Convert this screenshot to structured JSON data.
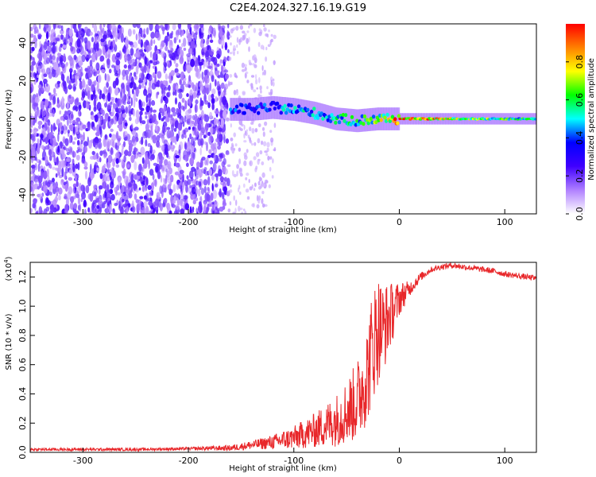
{
  "title": "C2E4.2024.327.16.19.G19",
  "chart_data": [
    {
      "type": "heatmap",
      "xlabel": "Height of straight line (km)",
      "ylabel": "Frequency (Hz)",
      "xlim": [
        -350,
        130
      ],
      "ylim": [
        -50,
        50
      ],
      "x_ticks": [
        -300,
        -200,
        -100,
        0,
        100
      ],
      "y_ticks": [
        -40,
        -20,
        0,
        20,
        40
      ],
      "colorbar": {
        "label": "Normalized spectral amplitude",
        "range": [
          0,
          1
        ],
        "ticks": [
          0.0,
          0.2,
          0.4,
          0.6,
          0.8
        ],
        "colormap": [
          "#ffffff",
          "#b080ff",
          "#4000ff",
          "#0000ff",
          "#00ffff",
          "#00ff00",
          "#ffff00",
          "#ff8000",
          "#ff0000"
        ]
      },
      "noise_region_x": [
        -350,
        -162
      ],
      "sparse_noise_region_x": [
        -162,
        -118
      ],
      "signal_track": [
        {
          "x": -160,
          "f": 5,
          "amp": 0.35
        },
        {
          "x": -140,
          "f": 5,
          "amp": 0.35
        },
        {
          "x": -120,
          "f": 6,
          "amp": 0.4
        },
        {
          "x": -100,
          "f": 5,
          "amp": 0.45
        },
        {
          "x": -80,
          "f": 3,
          "amp": 0.45
        },
        {
          "x": -60,
          "f": 0,
          "amp": 0.5
        },
        {
          "x": -40,
          "f": -1,
          "amp": 0.5
        },
        {
          "x": -20,
          "f": 0,
          "amp": 0.6
        },
        {
          "x": 0,
          "f": 0,
          "amp": 0.9
        },
        {
          "x": 50,
          "f": 0,
          "amp": 0.7
        },
        {
          "x": 100,
          "f": 0,
          "amp": 0.55
        },
        {
          "x": 130,
          "f": 0,
          "amp": 0.5
        }
      ]
    },
    {
      "type": "line",
      "xlabel": "Height of straight line (km)",
      "ylabel": "SNR (10 * v/v)",
      "multiplier_label": "(x10",
      "multiplier_exponent": "4",
      "xlim": [
        -350,
        130
      ],
      "ylim": [
        0,
        1.3
      ],
      "x_ticks": [
        -300,
        -200,
        -100,
        0,
        100
      ],
      "y_ticks": [
        0.0,
        0.2,
        0.4,
        0.6,
        0.8,
        1.0,
        1.2
      ],
      "color": "#e8272a",
      "series": [
        {
          "x": [
            -350,
            -300,
            -250,
            -200,
            -160,
            -140,
            -120,
            -100,
            -80,
            -60,
            -50,
            -40,
            -30,
            -25,
            -20,
            -15,
            -10,
            -5,
            0,
            10,
            20,
            30,
            40,
            50,
            60,
            70,
            80,
            90,
            100,
            110,
            120,
            130
          ],
          "values": [
            0.02,
            0.02,
            0.02,
            0.025,
            0.03,
            0.05,
            0.07,
            0.1,
            0.15,
            0.22,
            0.28,
            0.35,
            0.55,
            0.75,
            0.85,
            0.85,
            0.92,
            0.98,
            1.05,
            1.12,
            1.2,
            1.25,
            1.27,
            1.28,
            1.27,
            1.26,
            1.25,
            1.24,
            1.22,
            1.21,
            1.2,
            1.19
          ],
          "spread": [
            0.01,
            0.01,
            0.01,
            0.01,
            0.02,
            0.03,
            0.05,
            0.08,
            0.12,
            0.18,
            0.22,
            0.28,
            0.35,
            0.4,
            0.38,
            0.3,
            0.25,
            0.18,
            0.12,
            0.05,
            0.03,
            0.02,
            0.02,
            0.02,
            0.02,
            0.02,
            0.02,
            0.02,
            0.02,
            0.02,
            0.02,
            0.02
          ]
        }
      ]
    }
  ]
}
